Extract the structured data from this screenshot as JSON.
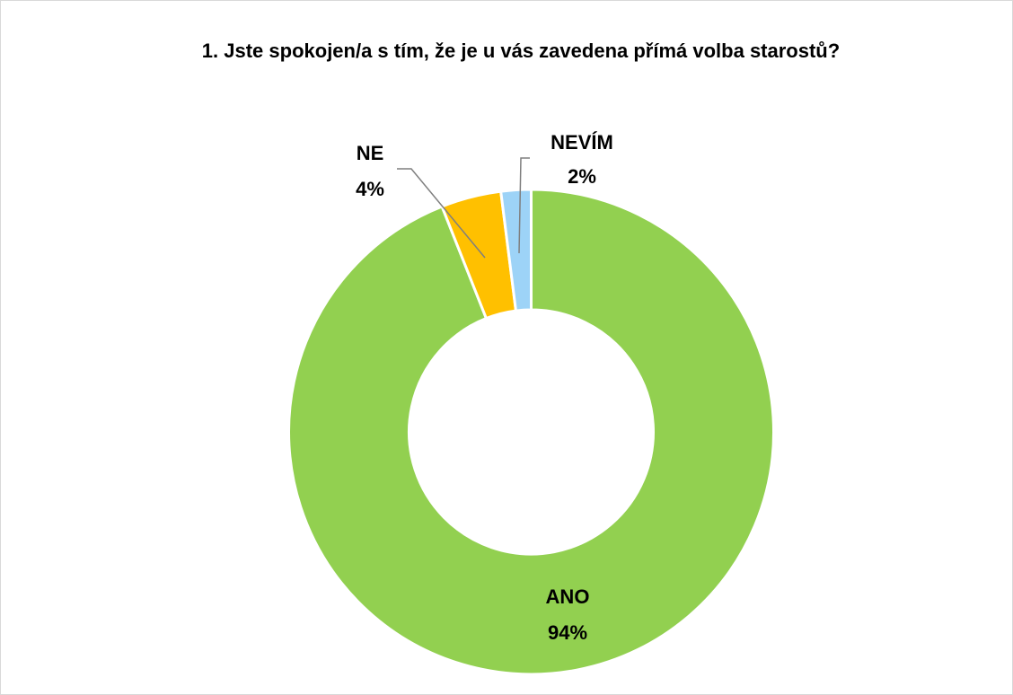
{
  "chart_data": {
    "type": "pie",
    "donut": true,
    "title": "1. Jste spokojen/a s tím, že je u vás zavedena přímá volba starostů?",
    "categories": [
      "ANO",
      "NE",
      "NEVÍM"
    ],
    "values": [
      94,
      4,
      2
    ],
    "value_labels": [
      "94%",
      "4%",
      "2%"
    ],
    "colors": [
      "#92d050",
      "#ffc000",
      "#9dd3f7"
    ]
  }
}
